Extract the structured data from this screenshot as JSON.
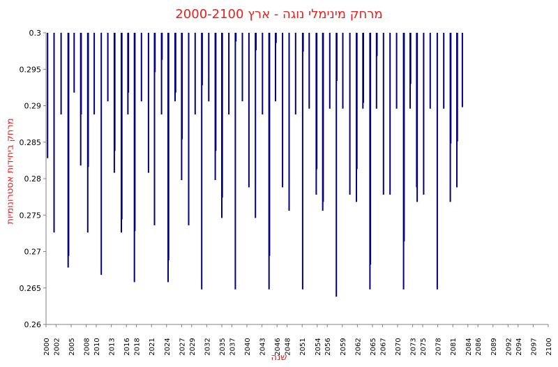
{
  "chart_data": {
    "type": "bar",
    "title": "מרחק מינימלי נוגה - ארץ  2000-2100",
    "xlabel": "שנה",
    "ylabel": "מרחק ביחידות אסטרונומיות",
    "ylim": [
      0.26,
      0.3
    ],
    "xlim": [
      2000,
      2100
    ],
    "yticks": [
      "0.3",
      "0.295",
      "0.29",
      "0.285",
      "0.28",
      "0.275",
      "0.27",
      "0.265",
      "0.26"
    ],
    "xticks": [
      "2000",
      "2002",
      "2005",
      "2008",
      "2010",
      "2013",
      "2016",
      "2018",
      "2021",
      "2024",
      "2027",
      "2029",
      "2032",
      "2035",
      "2037",
      "2040",
      "2043",
      "2046",
      "2048",
      "2051",
      "2054",
      "2056",
      "2059",
      "2062",
      "2065",
      "2067",
      "2070",
      "2073",
      "2075",
      "2078",
      "2081",
      "2084",
      "2086",
      "2089",
      "2092",
      "2094",
      "2097",
      "2100"
    ],
    "grid": false,
    "bar_color": "#000080",
    "points": [
      {
        "x": 2000.3,
        "y": 0.2828
      },
      {
        "x": 2001.6,
        "y": 0.2726
      },
      {
        "x": 2003.0,
        "y": 0.2888
      },
      {
        "x": 2004.4,
        "y": 0.2678
      },
      {
        "x": 2004.5,
        "y": 0.2694
      },
      {
        "x": 2005.6,
        "y": 0.2918
      },
      {
        "x": 2006.9,
        "y": 0.2818
      },
      {
        "x": 2007.0,
        "y": 0.2888
      },
      {
        "x": 2008.3,
        "y": 0.2726
      },
      {
        "x": 2008.4,
        "y": 0.2816
      },
      {
        "x": 2009.6,
        "y": 0.2888
      },
      {
        "x": 2011.0,
        "y": 0.2668
      },
      {
        "x": 2012.3,
        "y": 0.2906
      },
      {
        "x": 2013.6,
        "y": 0.2808
      },
      {
        "x": 2013.7,
        "y": 0.2838
      },
      {
        "x": 2015.0,
        "y": 0.2726
      },
      {
        "x": 2015.1,
        "y": 0.2744
      },
      {
        "x": 2016.3,
        "y": 0.2888
      },
      {
        "x": 2016.4,
        "y": 0.2918
      },
      {
        "x": 2017.6,
        "y": 0.2658
      },
      {
        "x": 2017.7,
        "y": 0.2728
      },
      {
        "x": 2019.0,
        "y": 0.2906
      },
      {
        "x": 2020.4,
        "y": 0.2808
      },
      {
        "x": 2021.6,
        "y": 0.2736
      },
      {
        "x": 2021.7,
        "y": 0.2946
      },
      {
        "x": 2023.0,
        "y": 0.2888
      },
      {
        "x": 2023.1,
        "y": 0.2963
      },
      {
        "x": 2024.3,
        "y": 0.2658
      },
      {
        "x": 2024.4,
        "y": 0.2688
      },
      {
        "x": 2025.7,
        "y": 0.2906
      },
      {
        "x": 2025.8,
        "y": 0.2918
      },
      {
        "x": 2027.0,
        "y": 0.2798
      },
      {
        "x": 2027.1,
        "y": 0.2854
      },
      {
        "x": 2028.4,
        "y": 0.2736
      },
      {
        "x": 2029.7,
        "y": 0.2888
      },
      {
        "x": 2031.0,
        "y": 0.2648
      },
      {
        "x": 2031.1,
        "y": 0.2928
      },
      {
        "x": 2032.4,
        "y": 0.2906
      },
      {
        "x": 2033.7,
        "y": 0.2798
      },
      {
        "x": 2033.8,
        "y": 0.2838
      },
      {
        "x": 2035.0,
        "y": 0.2746
      },
      {
        "x": 2035.1,
        "y": 0.2774
      },
      {
        "x": 2036.4,
        "y": 0.2888
      },
      {
        "x": 2037.7,
        "y": 0.2648
      },
      {
        "x": 2037.8,
        "y": 0.2988
      },
      {
        "x": 2039.1,
        "y": 0.2906
      },
      {
        "x": 2040.4,
        "y": 0.2788
      },
      {
        "x": 2041.7,
        "y": 0.2746
      },
      {
        "x": 2041.8,
        "y": 0.2976
      },
      {
        "x": 2043.1,
        "y": 0.2888
      },
      {
        "x": 2044.4,
        "y": 0.2648
      },
      {
        "x": 2044.5,
        "y": 0.2694
      },
      {
        "x": 2045.7,
        "y": 0.2906
      },
      {
        "x": 2045.8,
        "y": 0.2986
      },
      {
        "x": 2047.1,
        "y": 0.2788
      },
      {
        "x": 2048.4,
        "y": 0.2756
      },
      {
        "x": 2049.7,
        "y": 0.2888
      },
      {
        "x": 2051.1,
        "y": 0.2648
      },
      {
        "x": 2051.2,
        "y": 0.2974
      },
      {
        "x": 2052.4,
        "y": 0.2896
      },
      {
        "x": 2053.8,
        "y": 0.2778
      },
      {
        "x": 2053.9,
        "y": 0.2813
      },
      {
        "x": 2055.1,
        "y": 0.2756
      },
      {
        "x": 2055.2,
        "y": 0.2768
      },
      {
        "x": 2056.5,
        "y": 0.2896
      },
      {
        "x": 2057.8,
        "y": 0.2638
      },
      {
        "x": 2057.9,
        "y": 0.2934
      },
      {
        "x": 2059.1,
        "y": 0.2896
      },
      {
        "x": 2060.5,
        "y": 0.2778
      },
      {
        "x": 2061.8,
        "y": 0.2768
      },
      {
        "x": 2061.9,
        "y": 0.2813
      },
      {
        "x": 2063.1,
        "y": 0.2896
      },
      {
        "x": 2063.2,
        "y": 0.2904
      },
      {
        "x": 2064.5,
        "y": 0.2648
      },
      {
        "x": 2064.6,
        "y": 0.2682
      },
      {
        "x": 2065.8,
        "y": 0.2896
      },
      {
        "x": 2065.9,
        "y": 0.2968
      },
      {
        "x": 2067.2,
        "y": 0.2778
      },
      {
        "x": 2068.5,
        "y": 0.2778
      },
      {
        "x": 2069.8,
        "y": 0.2896
      },
      {
        "x": 2071.2,
        "y": 0.2648
      },
      {
        "x": 2071.3,
        "y": 0.2714
      },
      {
        "x": 2072.5,
        "y": 0.2896
      },
      {
        "x": 2072.6,
        "y": 0.293
      },
      {
        "x": 2073.8,
        "y": 0.2788
      },
      {
        "x": 2073.9,
        "y": 0.2768
      },
      {
        "x": 2075.2,
        "y": 0.2778
      },
      {
        "x": 2076.5,
        "y": 0.2896
      },
      {
        "x": 2077.9,
        "y": 0.2648
      },
      {
        "x": 2079.2,
        "y": 0.2896
      },
      {
        "x": 2080.5,
        "y": 0.2768
      },
      {
        "x": 2080.6,
        "y": 0.2848
      },
      {
        "x": 2081.8,
        "y": 0.2788
      },
      {
        "x": 2081.9,
        "y": 0.2851
      },
      {
        "x": 2082.9,
        "y": 0.2898
      }
    ]
  }
}
